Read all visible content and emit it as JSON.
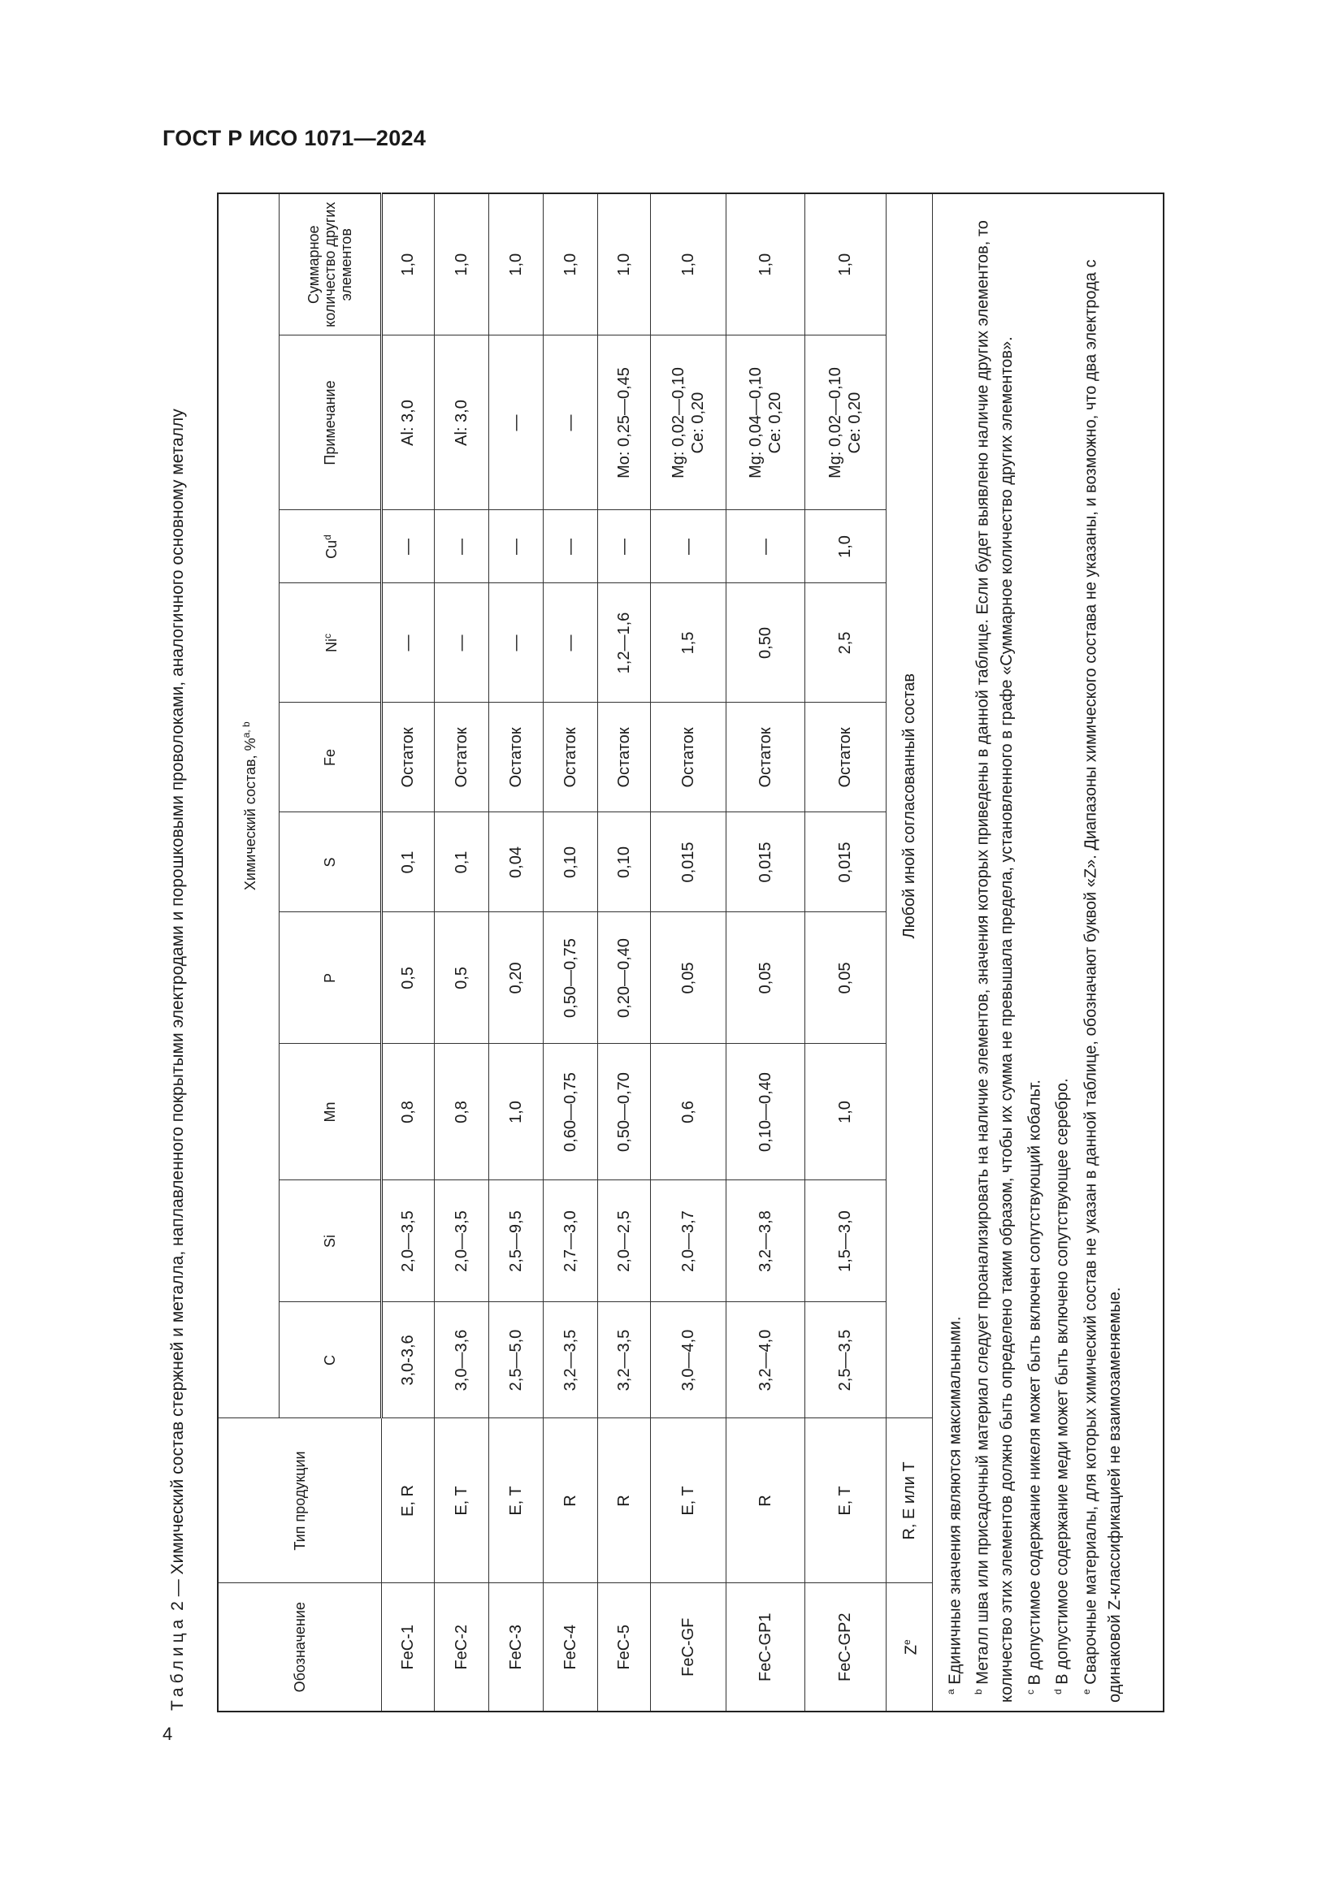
{
  "header": {
    "standard": "ГОСТ Р ИСО 1071—2024",
    "page_number": "4"
  },
  "caption": {
    "label": "Таблица",
    "rest": " 2 — Химический состав стержней и металла, наплавленного покрытыми электродами и порошковыми проволоками, аналогичного основному металлу"
  },
  "table": {
    "headers": {
      "designation": "Обозначение",
      "product_type": "Тип продукции",
      "chem_group": "Химический состав, %",
      "chem_group_sup": "a, b",
      "C": "C",
      "Si": "Si",
      "Mn": "Mn",
      "P": "P",
      "S": "S",
      "Fe": "Fe",
      "Ni": "Ni",
      "Ni_sup": "c",
      "Cu": "Cu",
      "Cu_sup": "d",
      "note": "Примечание",
      "total": "Суммарное количество других элементов"
    },
    "rows": [
      {
        "d": "FeC-1",
        "t": "E, R",
        "C": "3,0-3,6",
        "Si": "2,0—3,5",
        "Mn": "0,8",
        "P": "0,5",
        "S": "0,1",
        "Fe": "Остаток",
        "Ni": "—",
        "Cu": "—",
        "n1": "Al: 3,0",
        "n2": "",
        "tot": "1,0"
      },
      {
        "d": "FeC-2",
        "t": "E, T",
        "C": "3,0—3,6",
        "Si": "2,0—3,5",
        "Mn": "0,8",
        "P": "0,5",
        "S": "0,1",
        "Fe": "Остаток",
        "Ni": "—",
        "Cu": "—",
        "n1": "Al: 3,0",
        "n2": "",
        "tot": "1,0"
      },
      {
        "d": "FeC-3",
        "t": "E, T",
        "C": "2,5—5,0",
        "Si": "2,5—9,5",
        "Mn": "1,0",
        "P": "0,20",
        "S": "0,04",
        "Fe": "Остаток",
        "Ni": "—",
        "Cu": "—",
        "n1": "—",
        "n2": "",
        "tot": "1,0"
      },
      {
        "d": "FeC-4",
        "t": "R",
        "C": "3,2—3,5",
        "Si": "2,7—3,0",
        "Mn": "0,60—0,75",
        "P": "0,50—0,75",
        "S": "0,10",
        "Fe": "Остаток",
        "Ni": "—",
        "Cu": "—",
        "n1": "—",
        "n2": "",
        "tot": "1,0"
      },
      {
        "d": "FeC-5",
        "t": "R",
        "C": "3,2—3,5",
        "Si": "2,0—2,5",
        "Mn": "0,50—0,70",
        "P": "0,20—0,40",
        "S": "0,10",
        "Fe": "Остаток",
        "Ni": "1,2—1,6",
        "Cu": "—",
        "n1": "Mo: 0,25—0,45",
        "n2": "",
        "tot": "1,0"
      },
      {
        "d": "FeC-GF",
        "t": "E, T",
        "C": "3,0—4,0",
        "Si": "2,0—3,7",
        "Mn": "0,6",
        "P": "0,05",
        "S": "0,015",
        "Fe": "Остаток",
        "Ni": "1,5",
        "Cu": "—",
        "n1": "Mg: 0,02—0,10",
        "n2": "Ce: 0,20",
        "tot": "1,0"
      },
      {
        "d": "FeC-GP1",
        "t": "R",
        "C": "3,2—4,0",
        "Si": "3,2—3,8",
        "Mn": "0,10—0,40",
        "P": "0,05",
        "S": "0,015",
        "Fe": "Остаток",
        "Ni": "0,50",
        "Cu": "—",
        "n1": "Mg: 0,04—0,10",
        "n2": "Ce: 0,20",
        "tot": "1,0"
      },
      {
        "d": "FeC-GP2",
        "t": "E, T",
        "C": "2,5—3,5",
        "Si": "1,5—3,0",
        "Mn": "1,0",
        "P": "0,05",
        "S": "0,015",
        "Fe": "Остаток",
        "Ni": "2,5",
        "Cu": "1,0",
        "n1": "Mg: 0,02—0,10",
        "n2": "Ce: 0,20",
        "tot": "1,0"
      }
    ],
    "z_row": {
      "d": "Z",
      "d_sup": "e",
      "t": "R, E или T",
      "text": "Любой иной согласованный состав"
    },
    "footnotes": [
      {
        "mark": "a",
        "text": "Единичные значения являются максимальными."
      },
      {
        "mark": "b",
        "text": "Металл шва или присадочный материал следует проанализировать на наличие элементов, значения которых приведены в данной таблице. Если будет выявлено наличие других элементов, то количество этих элементов должно быть определено таким образом, чтобы их сумма не превышала предела, установленного в графе «Суммарное количество других элементов»."
      },
      {
        "mark": "c",
        "text": "В допустимое содержание никеля может быть включен сопутствующий кобальт."
      },
      {
        "mark": "d",
        "text": "В допустимое содержание меди может быть включено сопутствующее серебро."
      },
      {
        "mark": "e",
        "text": "Сварочные материалы, для которых химический состав не указан в данной таблице, обозначают буквой «Z». Диапазоны химического состава не указаны, и возможно, что два электрода с одинаковой Z-классификацией не взаимозаменяемые."
      }
    ]
  }
}
